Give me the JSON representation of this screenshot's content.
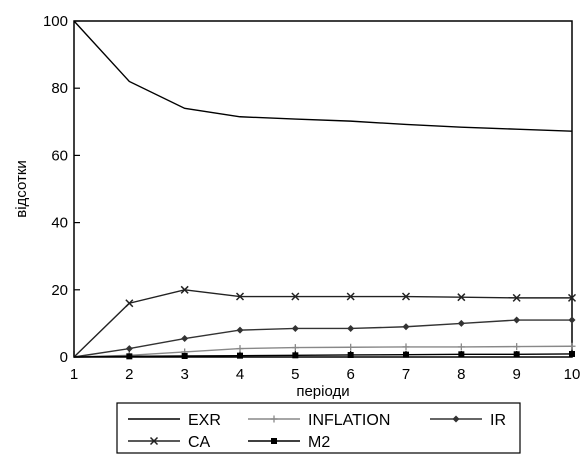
{
  "chart_data": {
    "type": "line",
    "title": "",
    "xlabel": "періоди",
    "ylabel": "відсотки",
    "x": [
      1,
      2,
      3,
      4,
      5,
      6,
      7,
      8,
      9,
      10
    ],
    "xlim": [
      1,
      10
    ],
    "ylim": [
      0,
      100
    ],
    "y_ticks": [
      0,
      20,
      40,
      60,
      80,
      100
    ],
    "grid": false,
    "legend_position": "bottom",
    "series": [
      {
        "name": "EXR",
        "marker": "none",
        "color": "#000000",
        "values": [
          100,
          82,
          74,
          71.5,
          70.8,
          70.2,
          69.2,
          68.4,
          67.8,
          67.2
        ]
      },
      {
        "name": "INFLATION",
        "marker": "plus",
        "color": "#888888",
        "values": [
          0,
          0.5,
          1.5,
          2.5,
          2.8,
          2.9,
          3.0,
          3.0,
          3.1,
          3.2
        ]
      },
      {
        "name": "IR",
        "marker": "diamond",
        "color": "#333333",
        "values": [
          0,
          2.5,
          5.5,
          8,
          8.5,
          8.5,
          9,
          10,
          11,
          11
        ]
      },
      {
        "name": "CA",
        "marker": "cross",
        "color": "#222222",
        "values": [
          0,
          16,
          20,
          18,
          18,
          18,
          18,
          17.8,
          17.6,
          17.6
        ]
      },
      {
        "name": "M2",
        "marker": "square",
        "color": "#000000",
        "values": [
          0,
          0.2,
          0.3,
          0.4,
          0.5,
          0.6,
          0.7,
          0.8,
          0.8,
          0.9
        ]
      }
    ]
  }
}
